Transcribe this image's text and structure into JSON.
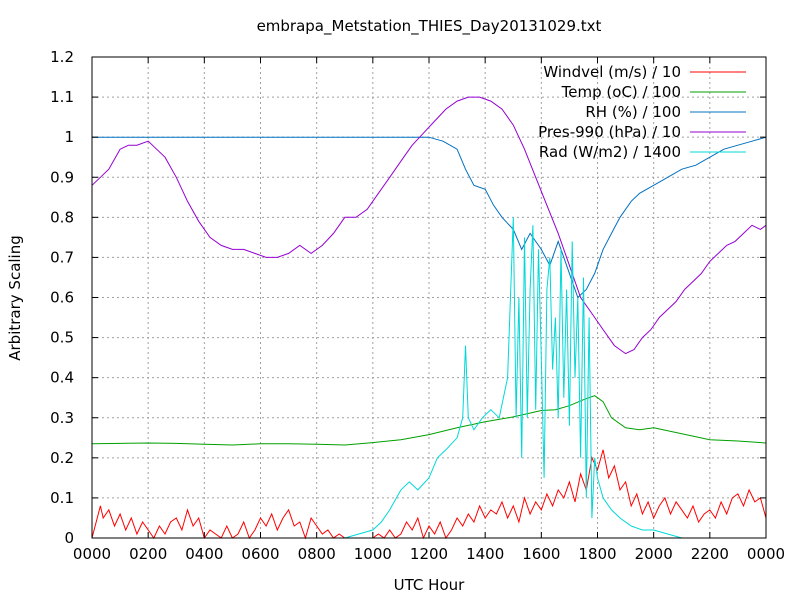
{
  "chart_data": {
    "type": "line",
    "title": "embrapa_Metstation_THIES_Day20131029.txt",
    "xlabel": "UTC Hour",
    "ylabel": "Arbitrary Scaling",
    "xlim": [
      0,
      24
    ],
    "ylim": [
      0,
      1.2
    ],
    "grid": true,
    "legend_position": "top-right",
    "x_tick_values": [
      0,
      2,
      4,
      6,
      8,
      10,
      12,
      14,
      16,
      18,
      20,
      22,
      24
    ],
    "x_tick_labels": [
      "0000",
      "0200",
      "0400",
      "0600",
      "0800",
      "1000",
      "1200",
      "1400",
      "1600",
      "1800",
      "2000",
      "2200",
      "0000"
    ],
    "y_tick_values": [
      0,
      0.1,
      0.2,
      0.3,
      0.4,
      0.5,
      0.6,
      0.7,
      0.8,
      0.9,
      1.0,
      1.1,
      1.2
    ],
    "y_tick_labels": [
      "0",
      "0.1",
      "0.2",
      "0.3",
      "0.4",
      "0.5",
      "0.6",
      "0.7",
      "0.8",
      "0.9",
      "1",
      "1.1",
      "1.2"
    ],
    "series": [
      {
        "name": "Windvel (m/s) / 10",
        "color": "#ff0000",
        "x": [
          0,
          0.3,
          0.4,
          0.6,
          0.8,
          1.0,
          1.2,
          1.4,
          1.6,
          1.8,
          2.0,
          2.2,
          2.4,
          2.6,
          2.8,
          3.0,
          3.2,
          3.4,
          3.6,
          3.8,
          4.0,
          4.2,
          4.4,
          4.6,
          4.8,
          5.0,
          5.2,
          5.4,
          5.6,
          5.8,
          6.0,
          6.2,
          6.4,
          6.6,
          6.8,
          7.0,
          7.2,
          7.4,
          7.6,
          7.8,
          8.0,
          8.2,
          8.4,
          8.6,
          8.8,
          9.0,
          9.2,
          9.4,
          9.6,
          9.8,
          10.0,
          10.2,
          10.4,
          10.6,
          10.8,
          11.0,
          11.2,
          11.4,
          11.6,
          11.8,
          12.0,
          12.2,
          12.4,
          12.6,
          12.8,
          13.0,
          13.2,
          13.4,
          13.6,
          13.8,
          14.0,
          14.2,
          14.4,
          14.6,
          14.8,
          15.0,
          15.2,
          15.4,
          15.6,
          15.8,
          16.0,
          16.2,
          16.4,
          16.6,
          16.8,
          17.0,
          17.2,
          17.4,
          17.6,
          17.8,
          18.0,
          18.2,
          18.4,
          18.6,
          18.8,
          19.0,
          19.2,
          19.4,
          19.6,
          19.8,
          20.0,
          20.2,
          20.4,
          20.6,
          20.8,
          21.0,
          21.2,
          21.4,
          21.6,
          21.8,
          22.0,
          22.2,
          22.4,
          22.6,
          22.8,
          23.0,
          23.2,
          23.4,
          23.6,
          23.8,
          24.0
        ],
        "values": [
          0.0,
          0.08,
          0.05,
          0.07,
          0.03,
          0.06,
          0.02,
          0.05,
          0.01,
          0.04,
          0.02,
          0.0,
          0.03,
          0.01,
          0.04,
          0.05,
          0.02,
          0.07,
          0.03,
          0.05,
          0.0,
          0.02,
          0.01,
          0.0,
          0.03,
          0.0,
          0.01,
          0.04,
          0.0,
          0.02,
          0.05,
          0.03,
          0.06,
          0.02,
          0.05,
          0.07,
          0.03,
          0.04,
          0.0,
          0.05,
          0.03,
          0.01,
          0.02,
          0.0,
          0.01,
          0.0,
          0.0,
          0.0,
          0.0,
          0.0,
          0.0,
          0.01,
          0.0,
          0.02,
          0.0,
          0.01,
          0.04,
          0.02,
          0.05,
          0.0,
          0.03,
          0.01,
          0.04,
          0.0,
          0.02,
          0.05,
          0.03,
          0.06,
          0.04,
          0.08,
          0.05,
          0.07,
          0.06,
          0.09,
          0.05,
          0.08,
          0.04,
          0.1,
          0.06,
          0.09,
          0.07,
          0.11,
          0.08,
          0.12,
          0.1,
          0.14,
          0.09,
          0.16,
          0.12,
          0.2,
          0.17,
          0.22,
          0.15,
          0.18,
          0.12,
          0.14,
          0.08,
          0.11,
          0.06,
          0.09,
          0.05,
          0.08,
          0.1,
          0.06,
          0.09,
          0.07,
          0.05,
          0.08,
          0.04,
          0.06,
          0.07,
          0.05,
          0.09,
          0.06,
          0.1,
          0.11,
          0.08,
          0.12,
          0.09,
          0.1,
          0.05
        ]
      },
      {
        "name": "Temp (oC) / 100",
        "color": "#00a000",
        "x": [
          0,
          1,
          2,
          3,
          4,
          5,
          6,
          7,
          8,
          9,
          10,
          11,
          12,
          13,
          14,
          15,
          16,
          16.5,
          17,
          17.5,
          17.9,
          18.2,
          18.5,
          19,
          19.5,
          20,
          21,
          22,
          23,
          24
        ],
        "values": [
          0.235,
          0.236,
          0.237,
          0.236,
          0.234,
          0.232,
          0.235,
          0.235,
          0.234,
          0.232,
          0.238,
          0.245,
          0.258,
          0.275,
          0.29,
          0.302,
          0.318,
          0.32,
          0.33,
          0.345,
          0.355,
          0.34,
          0.3,
          0.275,
          0.27,
          0.275,
          0.26,
          0.245,
          0.242,
          0.237
        ]
      },
      {
        "name": "RH (%) / 100",
        "color": "#0070c0",
        "x": [
          0,
          2,
          4,
          6,
          8,
          10,
          11,
          11.5,
          12,
          12.5,
          13,
          13.3,
          13.6,
          14,
          14.3,
          14.6,
          15,
          15.3,
          15.6,
          16,
          16.3,
          16.6,
          17,
          17.3,
          17.6,
          17.9,
          18.2,
          18.5,
          18.8,
          19.2,
          19.5,
          20,
          20.5,
          21,
          21.5,
          22,
          22.5,
          23,
          23.5,
          24
        ],
        "values": [
          1.0,
          1.0,
          1.0,
          1.0,
          1.0,
          1.0,
          1.0,
          1.0,
          1.0,
          0.99,
          0.97,
          0.92,
          0.88,
          0.87,
          0.83,
          0.8,
          0.77,
          0.72,
          0.76,
          0.72,
          0.68,
          0.74,
          0.66,
          0.6,
          0.62,
          0.66,
          0.72,
          0.76,
          0.8,
          0.84,
          0.86,
          0.88,
          0.9,
          0.92,
          0.93,
          0.95,
          0.97,
          0.98,
          0.99,
          1.0
        ]
      },
      {
        "name": "Pres-990 (hPa) / 10",
        "color": "#9400d3",
        "x": [
          0,
          0.3,
          0.6,
          1.0,
          1.3,
          1.6,
          2.0,
          2.3,
          2.6,
          3.0,
          3.4,
          3.8,
          4.2,
          4.6,
          5.0,
          5.4,
          5.8,
          6.2,
          6.6,
          7.0,
          7.4,
          7.8,
          8.2,
          8.6,
          9.0,
          9.4,
          9.8,
          10.2,
          10.6,
          11.0,
          11.4,
          11.8,
          12.2,
          12.6,
          13.0,
          13.4,
          13.8,
          14.2,
          14.6,
          15.0,
          15.4,
          15.8,
          16.2,
          16.6,
          17.0,
          17.4,
          17.8,
          18.2,
          18.6,
          19.0,
          19.3,
          19.6,
          19.9,
          20.2,
          20.5,
          20.8,
          21.1,
          21.4,
          21.7,
          22.0,
          22.3,
          22.6,
          22.9,
          23.2,
          23.5,
          23.8,
          24.0
        ],
        "values": [
          0.88,
          0.9,
          0.92,
          0.97,
          0.98,
          0.98,
          0.99,
          0.97,
          0.95,
          0.9,
          0.84,
          0.79,
          0.75,
          0.73,
          0.72,
          0.72,
          0.71,
          0.7,
          0.7,
          0.71,
          0.73,
          0.71,
          0.73,
          0.76,
          0.8,
          0.8,
          0.82,
          0.86,
          0.9,
          0.94,
          0.98,
          1.01,
          1.04,
          1.07,
          1.09,
          1.1,
          1.1,
          1.09,
          1.07,
          1.03,
          0.97,
          0.9,
          0.83,
          0.76,
          0.68,
          0.6,
          0.56,
          0.52,
          0.48,
          0.46,
          0.47,
          0.5,
          0.52,
          0.55,
          0.57,
          0.59,
          0.62,
          0.64,
          0.66,
          0.69,
          0.71,
          0.73,
          0.74,
          0.76,
          0.78,
          0.77,
          0.78
        ]
      },
      {
        "name": "Rad (W/m2) / 1400",
        "color": "#00d8d8",
        "x": [
          0,
          9,
          9.5,
          10,
          10.3,
          10.6,
          11.0,
          11.3,
          11.6,
          12.0,
          12.3,
          12.6,
          13.0,
          13.2,
          13.3,
          13.4,
          13.6,
          13.9,
          14.2,
          14.5,
          14.8,
          15.0,
          15.1,
          15.2,
          15.3,
          15.4,
          15.5,
          15.6,
          15.7,
          15.8,
          15.9,
          16.0,
          16.1,
          16.2,
          16.3,
          16.4,
          16.5,
          16.6,
          16.7,
          16.8,
          16.9,
          17.0,
          17.1,
          17.2,
          17.3,
          17.4,
          17.5,
          17.6,
          17.7,
          17.8,
          17.9,
          18.0,
          18.2,
          18.5,
          18.8,
          19.2,
          19.6,
          20.0,
          20.5,
          21.0,
          21.5,
          22.0,
          24.0
        ],
        "values": [
          0.0,
          0.0,
          0.01,
          0.02,
          0.04,
          0.07,
          0.12,
          0.14,
          0.12,
          0.15,
          0.2,
          0.22,
          0.25,
          0.3,
          0.48,
          0.3,
          0.27,
          0.3,
          0.32,
          0.3,
          0.4,
          0.8,
          0.3,
          0.6,
          0.2,
          0.75,
          0.3,
          0.62,
          0.78,
          0.32,
          0.72,
          0.45,
          0.15,
          0.62,
          0.7,
          0.42,
          0.55,
          0.3,
          0.72,
          0.35,
          0.62,
          0.28,
          0.74,
          0.4,
          0.6,
          0.2,
          0.65,
          0.1,
          0.55,
          0.05,
          0.2,
          0.15,
          0.1,
          0.07,
          0.05,
          0.03,
          0.02,
          0.02,
          0.01,
          0.0,
          0.0,
          0.0,
          0.0
        ]
      }
    ]
  }
}
